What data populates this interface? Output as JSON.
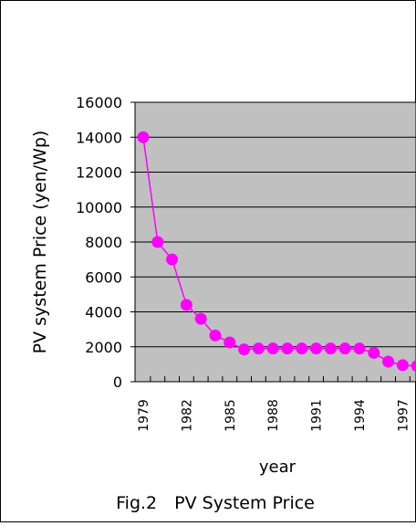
{
  "figure": {
    "caption": "Fig.2　PV System Price"
  },
  "chart_data": {
    "type": "line",
    "title": "",
    "xlabel": "year",
    "ylabel": "PV system Price (yen/Wp)",
    "ylim": [
      0,
      16000
    ],
    "y_ticks": [
      0,
      2000,
      4000,
      6000,
      8000,
      10000,
      12000,
      14000,
      16000
    ],
    "x_tick_labels": [
      "1979",
      "1982",
      "1985",
      "1988",
      "1991",
      "1994",
      "1997"
    ],
    "grid": "horizontal",
    "plot_background": "#c0c0c0",
    "series_color": "#ff00ff",
    "x": [
      1979,
      1980,
      1981,
      1982,
      1983,
      1984,
      1985,
      1986,
      1987,
      1988,
      1989,
      1990,
      1991,
      1992,
      1993,
      1994,
      1995,
      1996,
      1997,
      1998
    ],
    "series": [
      {
        "values": [
          14000,
          8000,
          7000,
          4400,
          3600,
          2650,
          2250,
          1850,
          1900,
          1900,
          1900,
          1900,
          1900,
          1900,
          1900,
          1900,
          1650,
          1150,
          950,
          900
        ]
      }
    ]
  }
}
